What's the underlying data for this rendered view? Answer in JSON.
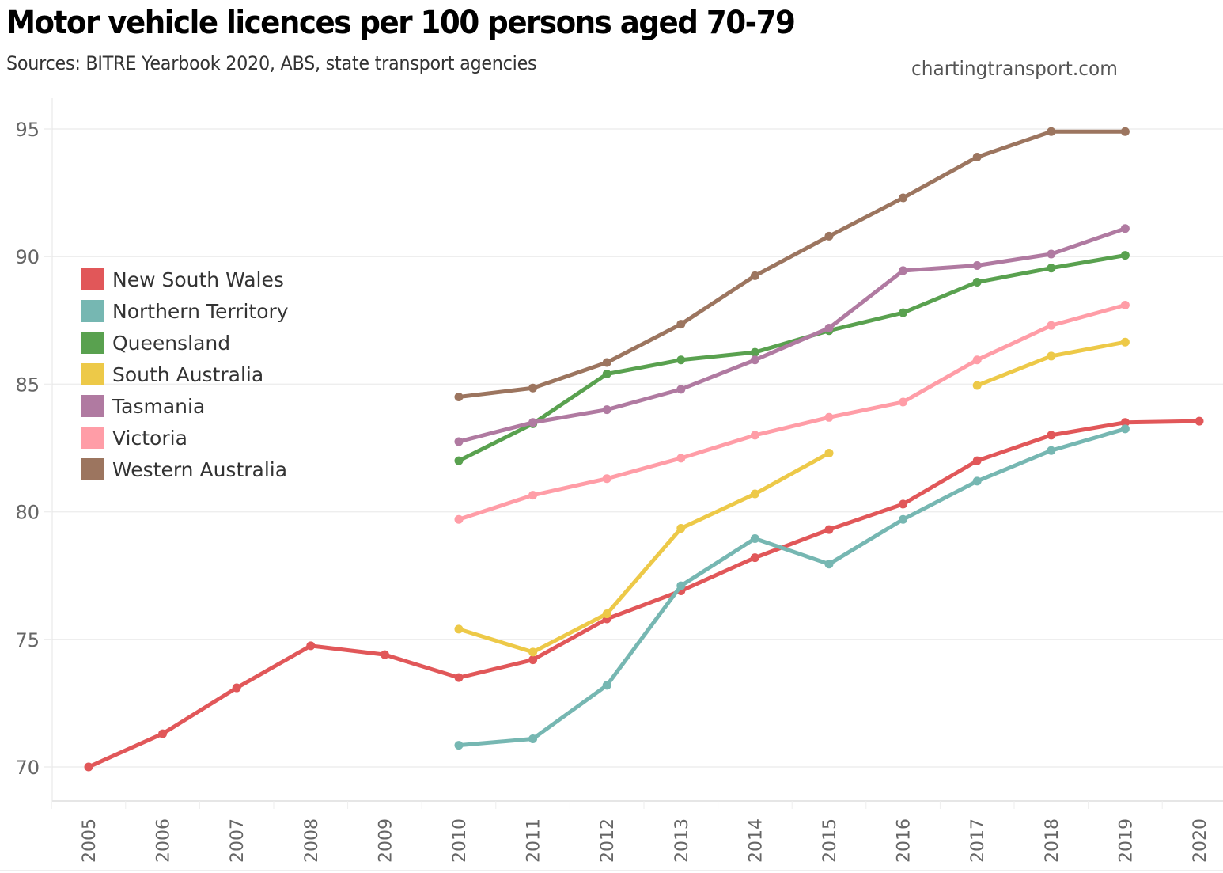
{
  "header": {
    "title": "Motor vehicle licences per 100 persons aged 70-79",
    "subtitle": "Sources: BITRE Yearbook 2020, ABS, state transport agencies",
    "credit": "chartingtransport.com"
  },
  "chart_data": {
    "type": "line",
    "title": "Motor vehicle licences per 100 persons aged 70-79",
    "subtitle": "Sources: BITRE Yearbook 2020, ABS, state transport agencies",
    "xlabel": "",
    "ylabel": "",
    "x": [
      2005,
      2006,
      2007,
      2008,
      2009,
      2010,
      2011,
      2012,
      2013,
      2014,
      2015,
      2016,
      2017,
      2018,
      2019,
      2020
    ],
    "x_tick_labels": [
      "2005",
      "2006",
      "2007",
      "2008",
      "2009",
      "2010",
      "2011",
      "2012",
      "2013",
      "2014",
      "2015",
      "2016",
      "2017",
      "2018",
      "2019",
      "2020"
    ],
    "ylim": [
      68.5,
      96.2
    ],
    "y_ticks": [
      70,
      75,
      80,
      85,
      90,
      95
    ],
    "y_tick_labels": [
      "70",
      "75",
      "80",
      "85",
      "90",
      "95"
    ],
    "grid": true,
    "legend_position": "left",
    "markers": true,
    "series": [
      {
        "name": "New South Wales",
        "color": "#e15759",
        "values": [
          70.0,
          71.3,
          73.1,
          74.75,
          74.4,
          73.5,
          74.2,
          75.8,
          76.9,
          78.2,
          79.3,
          80.3,
          82.0,
          83.0,
          83.5,
          83.55
        ]
      },
      {
        "name": "Northern Territory",
        "color": "#76b7b2",
        "values": [
          null,
          null,
          null,
          null,
          null,
          70.85,
          71.1,
          73.2,
          77.1,
          78.95,
          77.95,
          79.7,
          81.2,
          82.4,
          83.25,
          null
        ]
      },
      {
        "name": "Queensland",
        "color": "#59a14f",
        "values": [
          null,
          null,
          null,
          null,
          null,
          82.0,
          83.45,
          85.4,
          85.95,
          86.25,
          87.1,
          87.8,
          89.0,
          89.55,
          90.05,
          null
        ]
      },
      {
        "name": "South Australia",
        "color": "#edc948",
        "values": [
          null,
          null,
          null,
          null,
          null,
          75.4,
          74.5,
          76.0,
          79.35,
          80.7,
          82.3,
          null,
          84.95,
          86.1,
          86.65,
          null
        ]
      },
      {
        "name": "Tasmania",
        "color": "#b07aa1",
        "values": [
          null,
          null,
          null,
          null,
          null,
          82.75,
          83.5,
          84.0,
          84.8,
          85.95,
          87.2,
          89.45,
          89.65,
          90.1,
          91.1,
          null
        ]
      },
      {
        "name": "Victoria",
        "color": "#ff9da7",
        "values": [
          null,
          null,
          null,
          null,
          null,
          79.7,
          80.65,
          81.3,
          82.1,
          83.0,
          83.7,
          84.3,
          85.95,
          87.3,
          88.1,
          null
        ]
      },
      {
        "name": "Western Australia",
        "color": "#9c755f",
        "values": [
          null,
          null,
          null,
          null,
          null,
          84.5,
          84.85,
          85.85,
          87.35,
          89.25,
          90.8,
          92.3,
          93.9,
          94.9,
          94.9,
          null
        ]
      }
    ]
  }
}
